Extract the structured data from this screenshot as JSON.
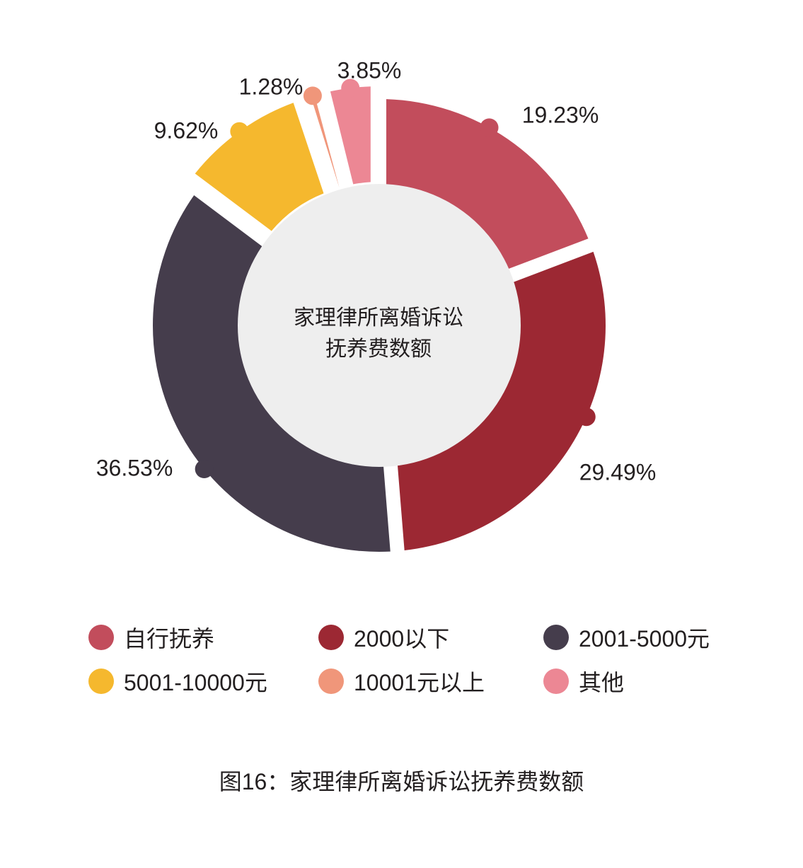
{
  "chart_data": {
    "type": "pie",
    "donut": true,
    "center_text": [
      "家理律所离婚诉讼",
      "抚养费数额"
    ],
    "categories": [
      "自行抚养",
      "2000以下",
      "2001-5000元",
      "5001-10000元",
      "10001元以上",
      "其他"
    ],
    "values": [
      19.23,
      29.49,
      36.53,
      9.62,
      1.28,
      3.85
    ],
    "labels": [
      "19.23%",
      "29.49%",
      "36.53%",
      "9.62%",
      "1.28%",
      "3.85%"
    ],
    "colors": [
      "#c24d5c",
      "#9c2833",
      "#453d4c",
      "#f5b82e",
      "#f0967a",
      "#ec8794"
    ],
    "legend_position": "bottom"
  },
  "legend": [
    {
      "label": "自行抚养",
      "color": "#c24d5c"
    },
    {
      "label": "2000以下",
      "color": "#9c2833"
    },
    {
      "label": "2001-5000元",
      "color": "#453d4c"
    },
    {
      "label": "5001-10000元",
      "color": "#f5b82e"
    },
    {
      "label": "10001元以上",
      "color": "#f0967a"
    },
    {
      "label": "其他",
      "color": "#ec8794"
    }
  ],
  "caption": "图16：家理律所离婚诉讼抚养费数额"
}
